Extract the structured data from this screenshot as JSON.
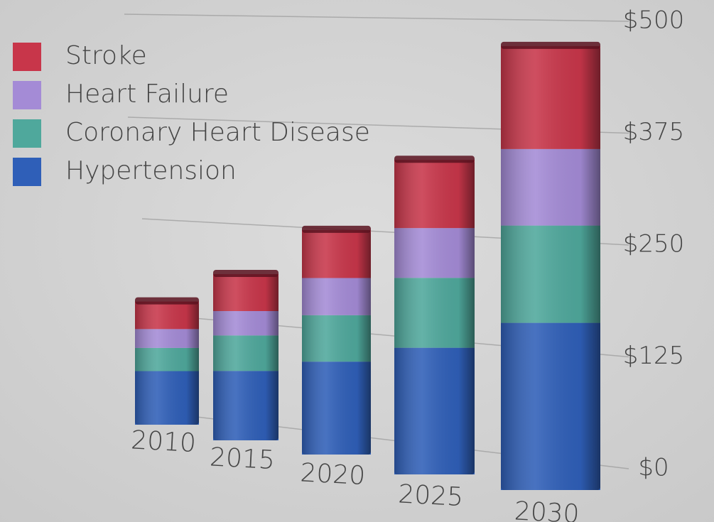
{
  "chart_data": {
    "type": "bar",
    "stacked": true,
    "categories": [
      "2010",
      "2015",
      "2020",
      "2025",
      "2030"
    ],
    "series": [
      {
        "name": "Hypertension",
        "color": "#2f5fb8",
        "values": [
          74,
          94,
          120,
          145,
          177
        ]
      },
      {
        "name": "Coronary Heart Disease",
        "color": "#4fa89c",
        "values": [
          32,
          48,
          60,
          80,
          103
        ]
      },
      {
        "name": "Heart Failure",
        "color": "#a48bd6",
        "values": [
          26,
          33,
          48,
          57,
          81
        ]
      },
      {
        "name": "Stroke",
        "color": "#c8364a",
        "values": [
          38,
          50,
          62,
          78,
          109
        ]
      }
    ],
    "ylim": [
      0,
      500
    ],
    "yticks": [
      {
        "value": 0,
        "label": "$0"
      },
      {
        "value": 125,
        "label": "$125"
      },
      {
        "value": 250,
        "label": "$250"
      },
      {
        "value": 375,
        "label": "$375"
      },
      {
        "value": 500,
        "label": "$500"
      }
    ],
    "grid": true,
    "legend": "top-left"
  }
}
